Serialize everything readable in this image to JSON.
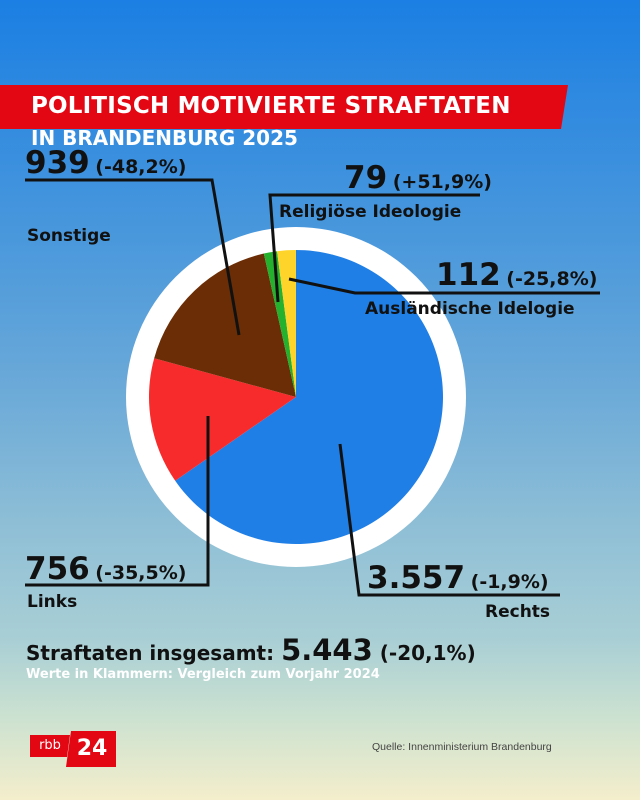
{
  "header": {
    "title": "POLITISCH MOTIVIERTE STRAFTATEN",
    "subtitle": "IN BRANDENBURG 2025"
  },
  "colors": {
    "banner": "#e30613",
    "ring": "#ffffff",
    "leader": "#111111"
  },
  "chart_data": {
    "type": "pie",
    "title": "POLITISCH MOTIVIERTE STRAFTATEN IN BRANDENBURG 2025",
    "start": "top",
    "direction": "clockwise",
    "slices": [
      {
        "label": "Rechts",
        "value": 3557,
        "value_text": "3.557",
        "change": "(-1,9%)",
        "color": "#1f7fe6"
      },
      {
        "label": "Links",
        "value": 756,
        "value_text": "756",
        "change": "(-35,5%)",
        "color": "#f72b2b"
      },
      {
        "label": "Sonstige",
        "value": 939,
        "value_text": "939",
        "change": "(-48,2%)",
        "color": "#6b2d05"
      },
      {
        "label": "Religiöse Ideologie",
        "value": 79,
        "value_text": "79",
        "change": "(+51,9%)",
        "color": "#25b02e"
      },
      {
        "label": "Ausländische Idelogie",
        "value": 112,
        "value_text": "112",
        "change": "(-25,8%)",
        "color": "#ffd42a"
      }
    ]
  },
  "total": {
    "label": "Straftaten insgesamt:",
    "value": "5.443",
    "change": "(-20,1%)"
  },
  "note": "Werte in Klammern: Vergleich zum Vorjahr 2024",
  "footer": {
    "logo_rbb": "rbb",
    "logo_24": "24",
    "source": "Quelle: Innenministerium Brandenburg"
  }
}
